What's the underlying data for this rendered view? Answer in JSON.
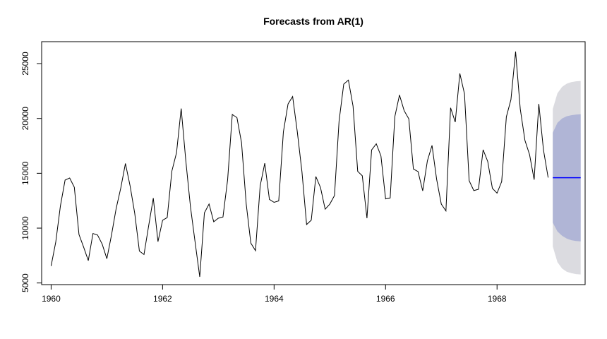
{
  "chart_data": {
    "type": "line",
    "title": "Forecasts from AR(1)",
    "xlabel": "",
    "ylabel": "",
    "xlim": [
      1959.83,
      1969.58
    ],
    "ylim": [
      4850,
      27000
    ],
    "x_ticks": [
      1960,
      1962,
      1964,
      1966,
      1968
    ],
    "x_tick_labels": [
      "1960",
      "1962",
      "1964",
      "1966",
      "1968"
    ],
    "y_ticks": [
      5000,
      10000,
      15000,
      20000,
      25000
    ],
    "y_tick_labels": [
      "5000",
      "10000",
      "15000",
      "20000",
      "25000"
    ],
    "grid": false,
    "legend": "none",
    "series": [
      {
        "role": "observed",
        "color": "#000000",
        "x_start": 1960,
        "x_step": 0.08333,
        "values": [
          6550,
          8730,
          12030,
          14380,
          14570,
          13720,
          9420,
          8270,
          7040,
          9510,
          9370,
          8540,
          7210,
          9380,
          11800,
          13650,
          15890,
          13860,
          11340,
          7910,
          7590,
          10210,
          12740,
          8770,
          10720,
          10960,
          15200,
          16870,
          20900,
          16120,
          11920,
          8730,
          5560,
          11390,
          12200,
          10580,
          10900,
          11020,
          14420,
          20360,
          20080,
          17790,
          12220,
          8630,
          7950,
          13850,
          15920,
          12620,
          12350,
          12480,
          18770,
          21320,
          22000,
          18790,
          15140,
          10330,
          10720,
          14700,
          13700,
          11730,
          12200,
          12970,
          19760,
          23130,
          23500,
          21120,
          15180,
          14770,
          10900,
          17130,
          17690,
          16590,
          12670,
          12750,
          20160,
          22140,
          20710,
          19960,
          15390,
          15150,
          13400,
          16130,
          17540,
          14460,
          12200,
          11570,
          20970,
          19670,
          24100,
          22240,
          14320,
          13420,
          13540,
          17150,
          16080,
          13630,
          13190,
          14250,
          20140,
          21720,
          26090,
          20870,
          18010,
          16700,
          14420,
          21320,
          17130,
          14610
        ]
      },
      {
        "role": "point-forecast",
        "color": "#0000ff",
        "x": [
          1969.0,
          1969.5
        ],
        "values": [
          14600,
          14600
        ]
      }
    ],
    "intervals": [
      {
        "level": "95%",
        "color": "#dbdbe0",
        "x": [
          1969.0,
          1969.0833,
          1969.1667,
          1969.25,
          1969.3333,
          1969.4167,
          1969.5
        ],
        "lower": [
          8330,
          6900,
          6320,
          6030,
          5890,
          5810,
          5780
        ],
        "upper": [
          20870,
          22300,
          22880,
          23170,
          23310,
          23390,
          23420
        ]
      },
      {
        "level": "80%",
        "color": "#b0b5d6",
        "x": [
          1969.0,
          1969.0833,
          1969.1667,
          1969.25,
          1969.3333,
          1969.4167,
          1969.5
        ],
        "lower": [
          10500,
          9700,
          9300,
          9050,
          8900,
          8830,
          8800
        ],
        "upper": [
          18700,
          19600,
          20000,
          20200,
          20300,
          20350,
          20380
        ]
      }
    ]
  }
}
